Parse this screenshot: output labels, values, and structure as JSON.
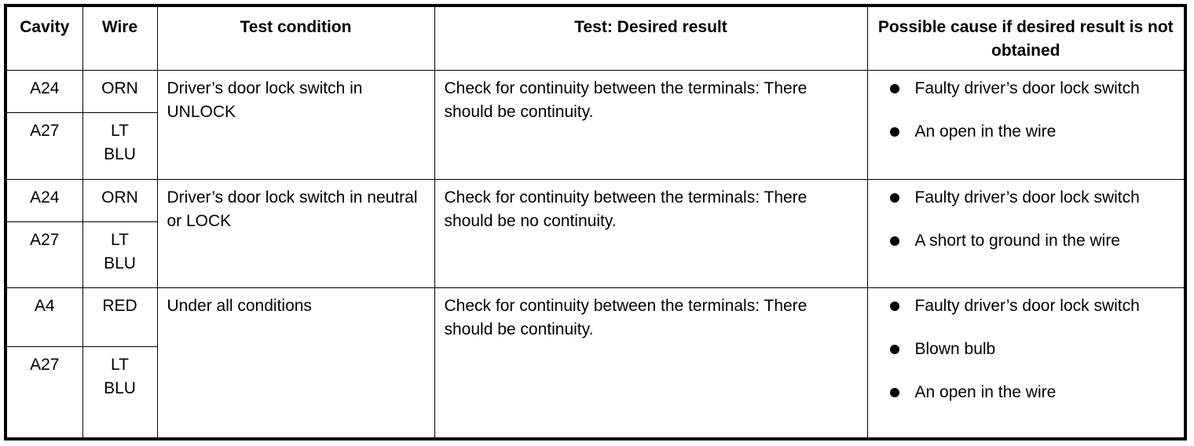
{
  "headers": {
    "cavity": "Cavity",
    "wire": "Wire",
    "condition": "Test condition",
    "result": "Test: Desired result",
    "cause": "Possible cause if desired result is not obtained"
  },
  "rows": [
    {
      "pins": [
        {
          "cavity": "A24",
          "wire": "ORN"
        },
        {
          "cavity": "A27",
          "wire": "LT BLU"
        }
      ],
      "condition": "Driver’s door lock switch in UNLOCK",
      "result": "Check for continuity between the terminals: There should be continuity.",
      "causes": [
        "Faulty driver’s door lock switch",
        "An open in the wire"
      ]
    },
    {
      "pins": [
        {
          "cavity": "A24",
          "wire": "ORN"
        },
        {
          "cavity": "A27",
          "wire": "LT BLU"
        }
      ],
      "condition": "Driver’s door lock switch in neutral or LOCK",
      "result": "Check for continuity between the terminals: There should be no continuity.",
      "causes": [
        "Faulty driver’s door lock switch",
        "A short to ground in the wire"
      ]
    },
    {
      "pins": [
        {
          "cavity": "A4",
          "wire": "RED"
        },
        {
          "cavity": "A27",
          "wire": "LT BLU"
        }
      ],
      "condition": "Under all conditions",
      "result": "Check for continuity between the terminals: There should be continuity.",
      "causes": [
        "Faulty driver’s door lock switch",
        "Blown bulb",
        "An open in the wire"
      ]
    }
  ]
}
